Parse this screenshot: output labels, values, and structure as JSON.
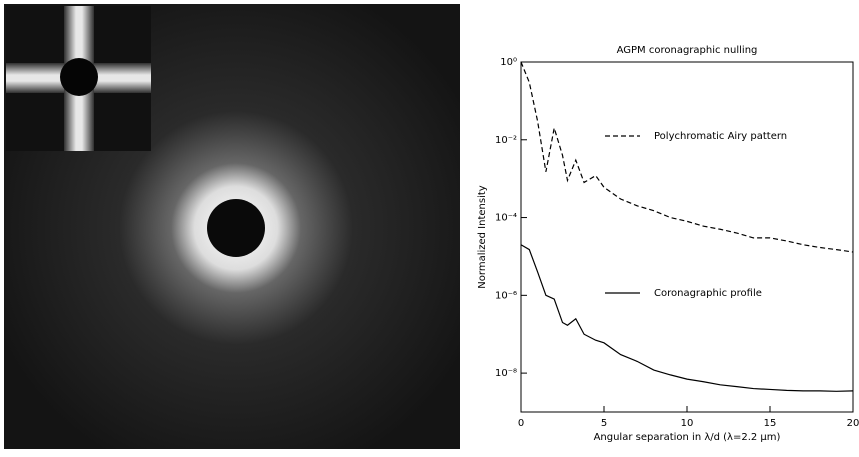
{
  "chart_data": {
    "type": "line",
    "title": "AGPM coronagraphic nulling",
    "x_label": "Angular separation in λ/d (λ=2.2 μm)",
    "y_label": "Normalized Intensity",
    "log_y": true,
    "xlim": [
      0,
      20
    ],
    "xticks": [
      0,
      5,
      10,
      15,
      20
    ],
    "ylim": [
      1e-09,
      1
    ],
    "yticks": [
      {
        "value": 1,
        "label": "10⁰"
      },
      {
        "value": 0.01,
        "label": "10⁻²"
      },
      {
        "value": 0.0001,
        "label": "10⁻⁴"
      },
      {
        "value": 1e-06,
        "label": "10⁻⁶"
      },
      {
        "value": 1e-08,
        "label": "10⁻⁸"
      }
    ],
    "x": [
      0,
      0.5,
      1,
      1.5,
      2,
      2.5,
      2.8,
      3.3,
      3.8,
      4.5,
      5,
      6,
      7,
      8,
      9,
      10,
      11,
      12,
      13,
      14,
      15,
      16,
      17,
      18,
      19,
      20
    ],
    "series": [
      {
        "name": "Polychromatic Airy pattern",
        "color": "#000000",
        "dashed": true,
        "values": [
          1,
          0.3,
          0.03,
          0.0015,
          0.02,
          0.004,
          0.0009,
          0.003,
          0.0008,
          0.0012,
          0.0006,
          0.0003,
          0.0002,
          0.00015,
          0.0001,
          8e-05,
          6e-05,
          5e-05,
          4e-05,
          3e-05,
          3e-05,
          2.5e-05,
          2e-05,
          1.7e-05,
          1.5e-05,
          1.3e-05
        ]
      },
      {
        "name": "Coronagraphic profile",
        "color": "#000000",
        "dashed": false,
        "values": [
          2e-05,
          1.5e-05,
          4e-06,
          1e-06,
          8e-07,
          2e-07,
          1.7e-07,
          2.5e-07,
          1e-07,
          7e-08,
          6e-08,
          3e-08,
          2e-08,
          1.2e-08,
          9e-09,
          7e-09,
          6e-09,
          5e-09,
          4.5e-09,
          4e-09,
          3.8e-09,
          3.6e-09,
          3.5e-09,
          3.5e-09,
          3.4e-09,
          3.5e-09
        ]
      }
    ]
  }
}
